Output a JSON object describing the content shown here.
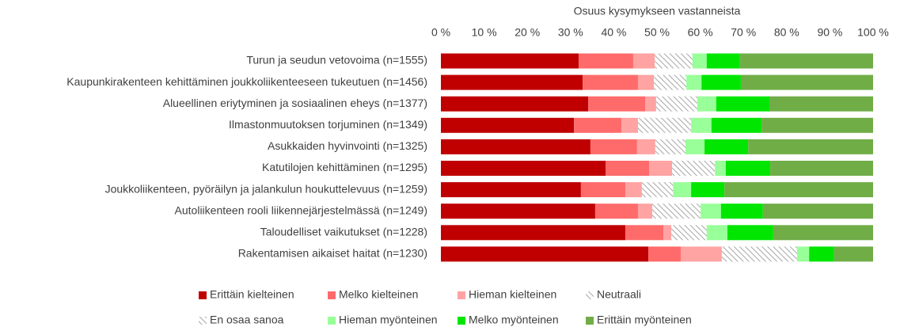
{
  "chart_data": {
    "type": "stacked_barh",
    "x_label": "Osuus kysymykseen vastanneista",
    "categories": [
      "Turun ja seudun vetovoima (n=1555)",
      "Kaupunkirakenteen kehittäminen joukkoliikenteeseen tukeutuen (n=1456)",
      "Alueellinen eriytyminen ja sosiaalinen eheys (n=1377)",
      "Ilmastonmuutoksen torjuminen (n=1349)",
      "Asukkaiden hyvinvointi (n=1325)",
      "Katutilojen kehittäminen (n=1295)",
      "Joukkoliikenteen, pyöräilyn ja jalankulun houkuttelevuus (n=1259)",
      "Autoliikenteen rooli liikennejärjestelmässä (n=1249)",
      "Taloudelliset vaikutukset (n=1228)",
      "Rakentamisen aikaiset haitat (n=1230)"
    ],
    "series": [
      {
        "name": "Erittäin kielteinen",
        "color": "#c00000",
        "values": [
          31.9,
          32.8,
          34.1,
          30.8,
          34.6,
          38.1,
          32.4,
          35.7,
          42.7,
          48.0
        ]
      },
      {
        "name": "Melko kielteinen",
        "color": "#ff6b6b",
        "values": [
          12.6,
          12.8,
          13.2,
          11.0,
          10.8,
          10.1,
          10.3,
          9.9,
          8.8,
          7.5
        ]
      },
      {
        "name": "Hieman kielteinen",
        "color": "#ffa3a3",
        "values": [
          5.0,
          3.7,
          2.5,
          3.8,
          4.2,
          5.3,
          3.8,
          3.3,
          1.8,
          9.5
        ]
      },
      {
        "name": "Neutraali",
        "color": "#a6a6a6",
        "hatch": true,
        "values": [
          7.5,
          6.3,
          8.3,
          10.9,
          5.8,
          8.5,
          6.0,
          9.8,
          7.0,
          15.9
        ]
      },
      {
        "name": "En osaa sanoa",
        "color": "#a6a6a6",
        "hatch": true,
        "values": [
          1.2,
          1.2,
          1.2,
          1.4,
          1.2,
          1.4,
          1.2,
          1.4,
          1.2,
          1.5
        ]
      },
      {
        "name": "Hieman myönteinen",
        "color": "#99ff99",
        "values": [
          3.3,
          3.5,
          4.4,
          4.7,
          4.4,
          2.5,
          4.2,
          4.7,
          4.8,
          2.8
        ]
      },
      {
        "name": "Melko myönteinen",
        "color": "#00e600",
        "values": [
          7.7,
          9.1,
          12.3,
          11.6,
          10.1,
          10.3,
          7.7,
          9.7,
          10.6,
          5.8
        ]
      },
      {
        "name": "Erittäin myönteinen",
        "color": "#70ad47",
        "values": [
          30.8,
          30.6,
          24.0,
          25.8,
          28.9,
          23.8,
          34.4,
          25.5,
          23.1,
          9.0
        ]
      }
    ],
    "xlim": [
      0,
      100
    ],
    "xticks": [
      {
        "value": 0,
        "label": "0 %"
      },
      {
        "value": 10,
        "label": "10 %"
      },
      {
        "value": 20,
        "label": "20 %"
      },
      {
        "value": 30,
        "label": "30 %"
      },
      {
        "value": 40,
        "label": "40 %"
      },
      {
        "value": 50,
        "label": "50 %"
      },
      {
        "value": 60,
        "label": "60 %"
      },
      {
        "value": 70,
        "label": "70 %"
      },
      {
        "value": 80,
        "label": "80 %"
      },
      {
        "value": 90,
        "label": "90 %"
      },
      {
        "value": 100,
        "label": "100 %"
      }
    ],
    "legend": "bottom"
  }
}
